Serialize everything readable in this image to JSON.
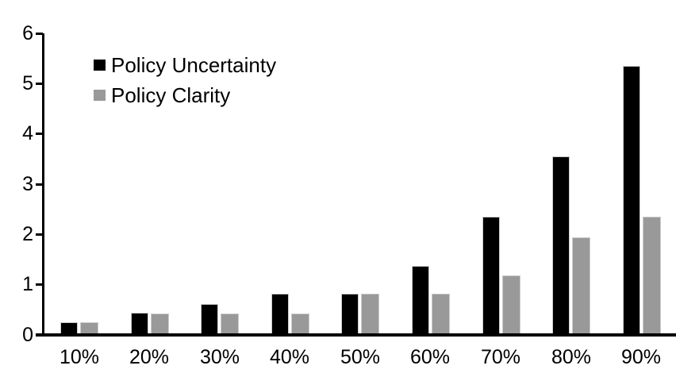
{
  "chart_data": {
    "type": "bar",
    "title": "",
    "xlabel": "",
    "ylabel": "",
    "categories": [
      "10%",
      "20%",
      "30%",
      "40%",
      "50%",
      "60%",
      "70%",
      "80%",
      "90%"
    ],
    "series": [
      {
        "name": "Policy Uncertainty",
        "color": "#000000",
        "values": [
          0.2,
          0.4,
          0.57,
          0.77,
          0.78,
          1.33,
          2.3,
          3.5,
          5.3
        ]
      },
      {
        "name": "Policy Clarity",
        "color": "#999999",
        "values": [
          0.2,
          0.38,
          0.38,
          0.38,
          0.77,
          0.77,
          1.13,
          1.9,
          2.3
        ]
      }
    ],
    "ylim": [
      0,
      6
    ],
    "yticks": [
      0,
      1,
      2,
      3,
      4,
      5,
      6
    ],
    "grid": false,
    "legend_position": "top-left"
  },
  "legend": {
    "items": [
      {
        "label": "Policy Uncertainty",
        "color": "#000000"
      },
      {
        "label": "Policy Clarity",
        "color": "#999999"
      }
    ]
  }
}
